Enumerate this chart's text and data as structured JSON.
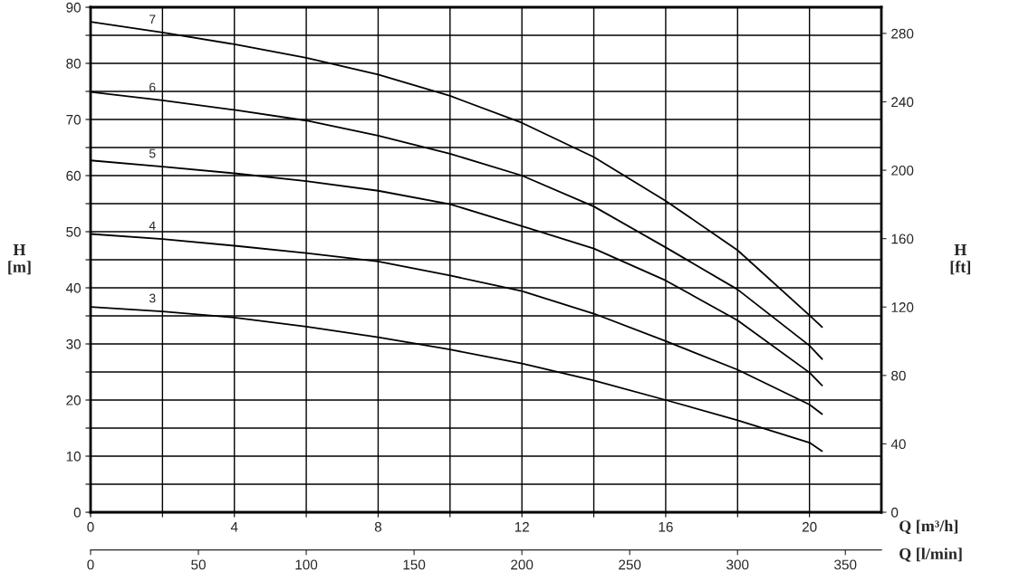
{
  "chart_data": {
    "type": "line",
    "x": [
      0,
      2,
      4,
      6,
      8,
      10,
      12,
      14,
      16,
      18,
      20,
      20.35
    ],
    "series": [
      {
        "name": "7",
        "color": "#000000",
        "values": [
          87.4,
          85.5,
          83.4,
          81.0,
          78.0,
          74.2,
          69.4,
          63.3,
          55.5,
          46.7,
          35.1,
          33.0
        ]
      },
      {
        "name": "6",
        "color": "#000000",
        "values": [
          74.9,
          73.4,
          71.7,
          69.8,
          67.1,
          63.9,
          60.0,
          54.5,
          47.2,
          39.7,
          29.7,
          27.3
        ]
      },
      {
        "name": "5",
        "color": "#000000",
        "values": [
          62.7,
          61.6,
          60.4,
          59.0,
          57.3,
          54.9,
          51.0,
          47.0,
          41.3,
          34.2,
          24.9,
          22.6
        ]
      },
      {
        "name": "4",
        "color": "#000000",
        "values": [
          49.6,
          48.7,
          47.5,
          46.2,
          44.7,
          42.2,
          39.4,
          35.4,
          30.5,
          25.4,
          19.2,
          17.5
        ]
      },
      {
        "name": "3",
        "color": "#000000",
        "values": [
          36.6,
          35.8,
          34.7,
          33.1,
          31.2,
          29.0,
          26.5,
          23.5,
          20.0,
          16.4,
          12.4,
          10.9
        ]
      }
    ],
    "xlabel": "Q [m³/h]",
    "ylabel": "H\n[m]",
    "y2label": "H\n[ft]",
    "x2label": "Q [l/min]",
    "xlim": [
      0,
      22
    ],
    "xticks": [
      0,
      {
        "value": 2,
        "label": null
      },
      4,
      {
        "value": 6,
        "label": null
      },
      8,
      {
        "value": 10,
        "label": null
      },
      12,
      {
        "value": 14,
        "label": null
      },
      16,
      {
        "value": 18,
        "label": null
      },
      20
    ],
    "ylim": [
      0,
      90
    ],
    "yticks": [
      0,
      {
        "value": 5,
        "label": null
      },
      10,
      {
        "value": 15,
        "label": null
      },
      20,
      {
        "value": 25,
        "label": null
      },
      30,
      {
        "value": 35,
        "label": null
      },
      40,
      {
        "value": 45,
        "label": null
      },
      50,
      {
        "value": 55,
        "label": null
      },
      60,
      {
        "value": 65,
        "label": null
      },
      70,
      {
        "value": 75,
        "label": null
      },
      80,
      {
        "value": 85,
        "label": null
      },
      90
    ],
    "y2lim": [
      0,
      295.3
    ],
    "y2ticks": [
      0,
      40,
      80,
      120,
      160,
      200,
      240,
      280
    ],
    "x2lim": [
      0,
      366.7
    ],
    "x2ticks": [
      0,
      50,
      100,
      150,
      200,
      250,
      300,
      350
    ],
    "grid": true,
    "legend": false,
    "marker": "none",
    "line_style": "solid"
  }
}
